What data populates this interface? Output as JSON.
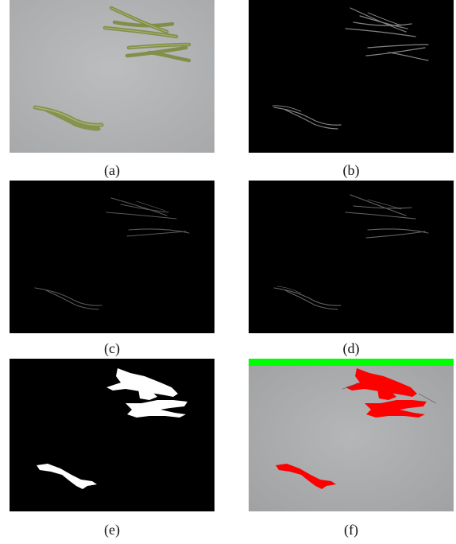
{
  "figure": {
    "captions": {
      "a": "(a)",
      "b": "(b)",
      "c": "(c)",
      "d": "(d)",
      "e": "(e)",
      "f": "(f)"
    }
  },
  "colors": {
    "background_gray": "#b5b6b8",
    "organism_green": "#8c9a4e",
    "mask_white": "#ffffff",
    "overlay_red": "#ff0000",
    "overlay_green_bar": "#00ff00",
    "dark_background": "#000000"
  }
}
